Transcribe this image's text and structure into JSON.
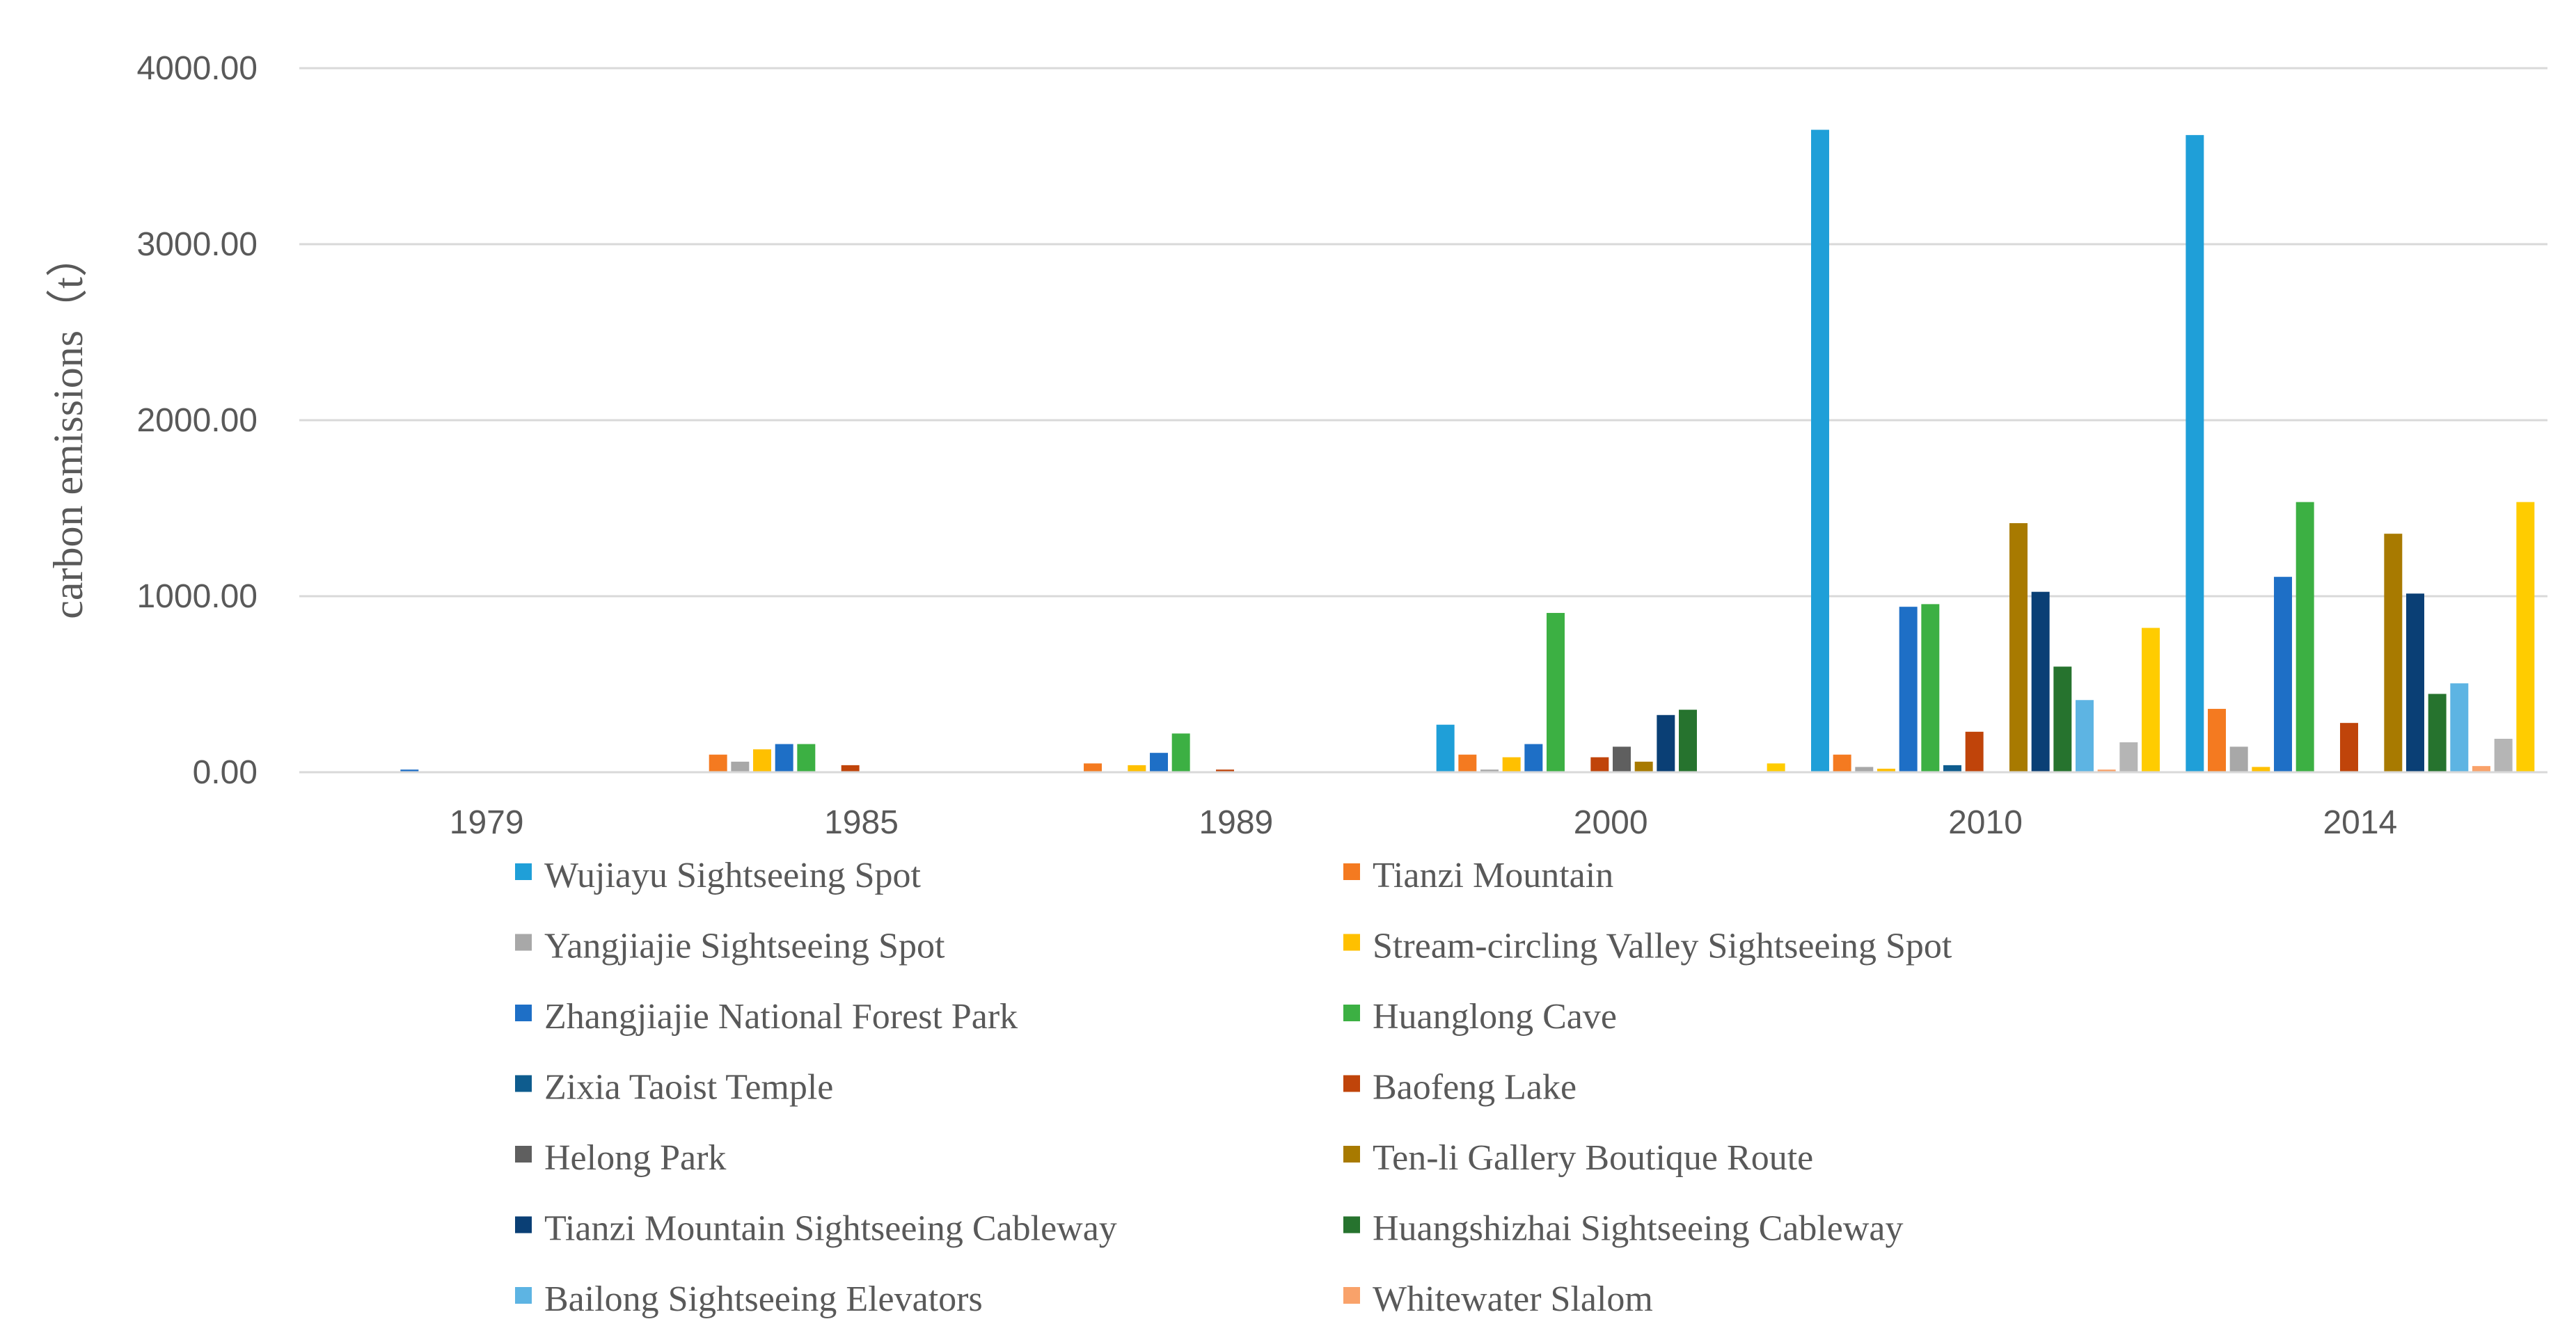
{
  "chart_data": {
    "type": "bar",
    "title": "",
    "xlabel": "",
    "ylabel": "carbon emissions（t）",
    "ylim": [
      0,
      4000
    ],
    "y_ticks": [
      "0.00",
      "1000.00",
      "2000.00",
      "3000.00",
      "4000.00"
    ],
    "grid": true,
    "legend_position": "bottom",
    "categories": [
      "1979",
      "1985",
      "1989",
      "2000",
      "2010",
      "2014"
    ],
    "series": [
      {
        "name": "Wujiayu Sightseeing Spot",
        "color": "#1F9FD8",
        "values": [
          0,
          0,
          0,
          270,
          3650,
          3620
        ]
      },
      {
        "name": "Tianzi Mountain",
        "color": "#F47A20",
        "values": [
          0,
          100,
          50,
          100,
          100,
          360
        ]
      },
      {
        "name": "Yangjiajie Sightseeing Spot",
        "color": "#A8A8A8",
        "values": [
          0,
          60,
          0,
          15,
          30,
          145
        ]
      },
      {
        "name": "Stream-circling Valley Sightseeing Spot",
        "color": "#FFC000",
        "values": [
          0,
          130,
          40,
          85,
          20,
          30
        ]
      },
      {
        "name": "Zhangjiajie National Forest Park",
        "color": "#1E6FC6",
        "values": [
          15,
          160,
          110,
          160,
          940,
          1110
        ]
      },
      {
        "name": "Huanglong Cave",
        "color": "#3CB043",
        "values": [
          0,
          160,
          220,
          905,
          955,
          1535
        ]
      },
      {
        "name": "Zixia Taoist Temple",
        "color": "#0E5C8E",
        "values": [
          0,
          0,
          0,
          0,
          40,
          0
        ]
      },
      {
        "name": "Baofeng Lake",
        "color": "#C0440A",
        "values": [
          0,
          40,
          15,
          85,
          230,
          280
        ]
      },
      {
        "name": "Helong Park",
        "color": "#5F5F5F",
        "values": [
          0,
          0,
          0,
          145,
          0,
          0
        ]
      },
      {
        "name": "Ten-li Gallery Boutique Route",
        "color": "#A87A00",
        "values": [
          0,
          0,
          0,
          60,
          1415,
          1355
        ]
      },
      {
        "name": "Tianzi Mountain Sightseeing Cableway",
        "color": "#0A3F75",
        "values": [
          0,
          0,
          0,
          325,
          1025,
          1015
        ]
      },
      {
        "name": "Huangshizhai Sightseeing Cableway",
        "color": "#26732E",
        "values": [
          0,
          0,
          0,
          355,
          600,
          445
        ]
      },
      {
        "name": "Bailong Sightseeing Elevators",
        "color": "#5DB4E3",
        "values": [
          0,
          0,
          0,
          0,
          410,
          505
        ]
      },
      {
        "name": "Whitewater Slalom",
        "color": "#F9A26A",
        "values": [
          0,
          0,
          0,
          0,
          15,
          35
        ]
      },
      {
        "name": "",
        "color": "#B5B5B5",
        "values": [
          0,
          0,
          0,
          0,
          170,
          190
        ]
      },
      {
        "name": "",
        "color": "#FFCC00",
        "values": [
          0,
          0,
          0,
          50,
          820,
          1535
        ]
      }
    ]
  }
}
